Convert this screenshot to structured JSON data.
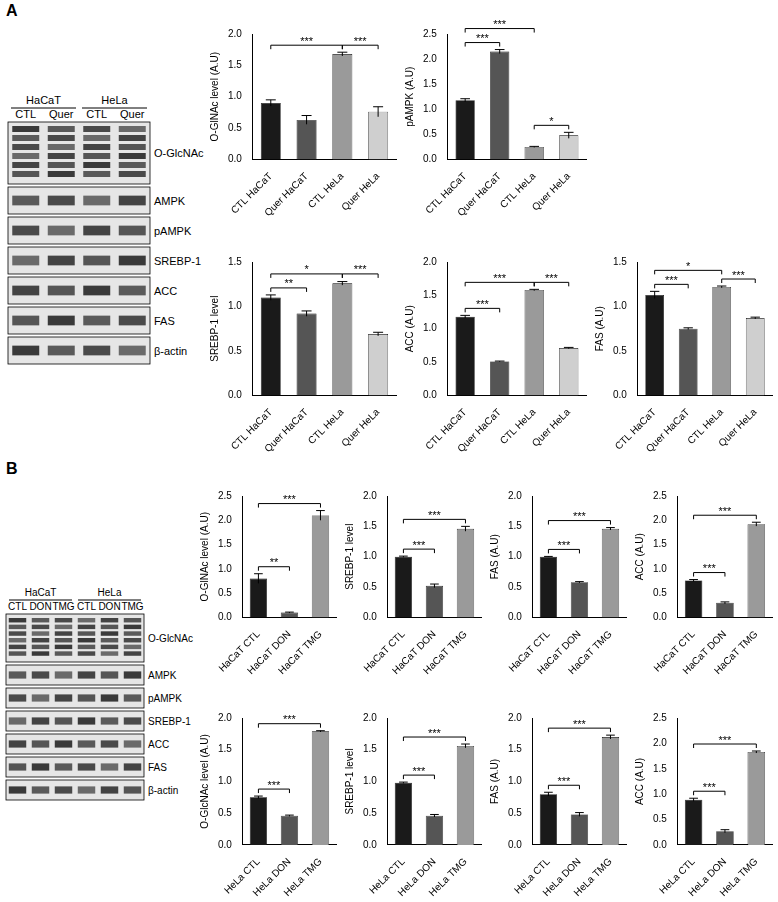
{
  "panels": [
    {
      "label": "A",
      "blot": {
        "groups": [
          "HaCaT",
          "HeLa"
        ],
        "lanes": [
          "CTL",
          "Quer",
          "CTL",
          "Quer"
        ],
        "rows": [
          "O-GlcNAc",
          "AMPK",
          "pAMPK",
          "SREBP-1",
          "ACC",
          "FAS",
          "β-actin"
        ]
      }
    },
    {
      "label": "B",
      "blot": {
        "groups": [
          "HaCaT",
          "HeLa"
        ],
        "lanes": [
          "CTL",
          "DON",
          "TMG",
          "CTL",
          "DON",
          "TMG"
        ],
        "rows": [
          "O-GlcNAc",
          "AMPK",
          "pAMPK",
          "SREBP-1",
          "ACC",
          "FAS",
          "β-actin"
        ]
      }
    }
  ],
  "chart_data": [
    {
      "type": "bar",
      "y_label": "O-GlNAc level (A.U)",
      "categories": [
        "CTL HaCaT",
        "Quer HaCaT",
        "CTL HeLa",
        "Quer HeLa"
      ],
      "values": [
        0.9,
        0.63,
        1.68,
        0.76
      ],
      "errors": [
        0.05,
        0.07,
        0.03,
        0.08
      ],
      "colors": [
        "#1a1a1a",
        "#555555",
        "#9a9a9a",
        "#cfcfcf"
      ],
      "ylim": [
        0,
        2.0
      ],
      "yticks": [
        {
          "value": 0,
          "label": "0.0"
        },
        0.5,
        {
          "value": 1,
          "label": "1.0"
        },
        1.5,
        {
          "value": 2,
          "label": "2.0"
        }
      ],
      "annotations": [
        {
          "from": "CTL HaCaT",
          "to": "CTL HeLa",
          "text": "***"
        },
        {
          "from": "CTL HeLa",
          "to": "Quer HeLa",
          "text": "***"
        }
      ]
    },
    {
      "type": "bar",
      "y_label": "pAMPK (A.U)",
      "categories": [
        "CTL HaCaT",
        "Quer HaCaT",
        "CTL HeLa",
        "Quer HeLa"
      ],
      "values": [
        1.18,
        2.15,
        0.25,
        0.48
      ],
      "errors": [
        0.03,
        0.04,
        0.01,
        0.06
      ],
      "colors": [
        "#1a1a1a",
        "#555555",
        "#9a9a9a",
        "#cfcfcf"
      ],
      "ylim": [
        0,
        2.5
      ],
      "yticks": [
        {
          "value": 0,
          "label": "0.0"
        },
        0.5,
        {
          "value": 1,
          "label": "1.0"
        },
        1.5,
        {
          "value": 2,
          "label": "2.0"
        },
        2.5
      ],
      "annotations": [
        {
          "from": "CTL HaCaT",
          "to": "Quer HaCaT",
          "text": "***"
        },
        {
          "from": "CTL HaCaT",
          "to": "CTL HeLa",
          "text": "***"
        },
        {
          "from": "CTL HeLa",
          "to": "Quer HeLa",
          "text": "*"
        }
      ]
    },
    {
      "type": "bar",
      "y_label": "SREBP-1 level",
      "categories": [
        "CTL HaCaT",
        "Quer HaCaT",
        "CTL HeLa",
        "Quer HeLa"
      ],
      "values": [
        1.1,
        0.92,
        1.26,
        0.69
      ],
      "errors": [
        0.03,
        0.03,
        0.02,
        0.02
      ],
      "colors": [
        "#1a1a1a",
        "#555555",
        "#9a9a9a",
        "#cfcfcf"
      ],
      "ylim": [
        0,
        1.5
      ],
      "yticks": [
        {
          "value": 0,
          "label": "0.0"
        },
        0.5,
        {
          "value": 1,
          "label": "1.0"
        },
        1.5
      ],
      "annotations": [
        {
          "from": "CTL HaCaT",
          "to": "Quer HaCaT",
          "text": "**"
        },
        {
          "from": "CTL HaCaT",
          "to": "CTL HeLa",
          "text": "*"
        },
        {
          "from": "CTL HeLa",
          "to": "Quer HeLa",
          "text": "***"
        }
      ]
    },
    {
      "type": "bar",
      "y_label": "ACC (A.U)",
      "categories": [
        "CTL HaCaT",
        "Quer HaCaT",
        "CTL HeLa",
        "Quer HeLa"
      ],
      "values": [
        1.18,
        0.51,
        1.58,
        0.71
      ],
      "errors": [
        0.02,
        0.005,
        0.01,
        0.01
      ],
      "colors": [
        "#1a1a1a",
        "#555555",
        "#9a9a9a",
        "#cfcfcf"
      ],
      "ylim": [
        0,
        2.0
      ],
      "yticks": [
        {
          "value": 0,
          "label": "0.0"
        },
        0.5,
        {
          "value": 1,
          "label": "1.0"
        },
        1.5,
        {
          "value": 2,
          "label": "2.0"
        }
      ],
      "annotations": [
        {
          "from": "CTL HaCaT",
          "to": "Quer HaCaT",
          "text": "***"
        },
        {
          "from": "CTL HaCaT",
          "to": "CTL HeLa",
          "text": "***"
        },
        {
          "from": "CTL HeLa",
          "to": "Quer HeLa",
          "text": "***"
        }
      ]
    },
    {
      "type": "bar",
      "y_label": "FAS (A.U)",
      "categories": [
        "CTL HaCaT",
        "Quer HaCaT",
        "CTL HeLa",
        "Quer HeLa"
      ],
      "values": [
        1.13,
        0.75,
        1.22,
        0.87
      ],
      "errors": [
        0.04,
        0.01,
        0.01,
        0.01
      ],
      "colors": [
        "#1a1a1a",
        "#555555",
        "#9a9a9a",
        "#cfcfcf"
      ],
      "ylim": [
        0,
        1.5
      ],
      "yticks": [
        {
          "value": 0,
          "label": "0.0"
        },
        0.5,
        {
          "value": 1,
          "label": "1.0"
        },
        1.5
      ],
      "annotations": [
        {
          "from": "CTL HaCaT",
          "to": "Quer HaCaT",
          "text": "***"
        },
        {
          "from": "CTL HaCaT",
          "to": "CTL HeLa",
          "text": "*"
        },
        {
          "from": "CTL HeLa",
          "to": "Quer HeLa",
          "text": "***"
        }
      ]
    },
    {
      "type": "bar",
      "y_label": "O-GlNAc level (A.U)",
      "categories": [
        "HaCaT CTL",
        "HaCaT DON",
        "HaCaT TMG"
      ],
      "values": [
        0.8,
        0.1,
        2.1
      ],
      "errors": [
        0.1,
        0.01,
        0.1
      ],
      "colors": [
        "#1a1a1a",
        "#555555",
        "#9a9a9a"
      ],
      "ylim": [
        0,
        2.5
      ],
      "yticks": [
        {
          "value": 0,
          "label": "0.0"
        },
        0.5,
        {
          "value": 1,
          "label": "1.0"
        },
        1.5,
        {
          "value": 2,
          "label": "2.0"
        },
        2.5
      ],
      "annotations": [
        {
          "from": "HaCaT CTL",
          "to": "HaCaT DON",
          "text": "**"
        },
        {
          "from": "HaCaT CTL",
          "to": "HaCaT TMG",
          "text": "***"
        }
      ]
    },
    {
      "type": "bar",
      "y_label": "SREBP-1 level",
      "categories": [
        "HaCaT CTL",
        "HaCaT DON",
        "HaCaT TMG"
      ],
      "values": [
        1.0,
        0.52,
        1.46
      ],
      "errors": [
        0.01,
        0.03,
        0.04
      ],
      "colors": [
        "#1a1a1a",
        "#555555",
        "#9a9a9a"
      ],
      "ylim": [
        0,
        2.0
      ],
      "yticks": [
        {
          "value": 0,
          "label": "0.0"
        },
        0.5,
        {
          "value": 1,
          "label": "1.0"
        },
        1.5,
        {
          "value": 2,
          "label": "2.0"
        }
      ],
      "annotations": [
        {
          "from": "HaCaT CTL",
          "to": "HaCaT DON",
          "text": "***"
        },
        {
          "from": "HaCaT CTL",
          "to": "HaCaT TMG",
          "text": "***"
        }
      ]
    },
    {
      "type": "bar",
      "y_label": "FAS (A.U)",
      "categories": [
        "HaCaT CTL",
        "HaCaT DON",
        "HaCaT TMG"
      ],
      "values": [
        1.0,
        0.58,
        1.46
      ],
      "errors": [
        0.005,
        0.01,
        0.02
      ],
      "colors": [
        "#1a1a1a",
        "#555555",
        "#9a9a9a"
      ],
      "ylim": [
        0,
        2.0
      ],
      "yticks": [
        {
          "value": 0,
          "label": "0.0"
        },
        0.5,
        {
          "value": 1,
          "label": "1.0"
        },
        1.5,
        {
          "value": 2,
          "label": "2.0"
        }
      ],
      "annotations": [
        {
          "from": "HaCaT CTL",
          "to": "HaCaT DON",
          "text": "***"
        },
        {
          "from": "HaCaT CTL",
          "to": "HaCaT TMG",
          "text": "***"
        }
      ]
    },
    {
      "type": "bar",
      "y_label": "ACC (A.U)",
      "categories": [
        "HaCaT CTL",
        "HaCaT DON",
        "HaCaT TMG"
      ],
      "values": [
        0.76,
        0.3,
        1.92
      ],
      "errors": [
        0.02,
        0.02,
        0.04
      ],
      "colors": [
        "#1a1a1a",
        "#555555",
        "#9a9a9a"
      ],
      "ylim": [
        0,
        2.5
      ],
      "yticks": [
        {
          "value": 0,
          "label": "0.0"
        },
        0.5,
        {
          "value": 1,
          "label": "1.0"
        },
        1.5,
        {
          "value": 2,
          "label": "2.0"
        },
        2.5
      ],
      "annotations": [
        {
          "from": "HaCaT CTL",
          "to": "HaCaT DON",
          "text": "***"
        },
        {
          "from": "HaCaT CTL",
          "to": "HaCaT TMG",
          "text": "***"
        }
      ]
    },
    {
      "type": "bar",
      "y_label": "O-GlcNAc level (A.U)",
      "categories": [
        "HeLa CTL",
        "HeLa DON",
        "HeLa TMG"
      ],
      "values": [
        0.75,
        0.46,
        1.79
      ],
      "errors": [
        0.02,
        0.01,
        0.01
      ],
      "colors": [
        "#1a1a1a",
        "#555555",
        "#9a9a9a"
      ],
      "ylim": [
        0,
        2.0
      ],
      "yticks": [
        {
          "value": 0,
          "label": "0.0"
        },
        0.5,
        {
          "value": 1,
          "label": "1.0"
        },
        1.5,
        {
          "value": 2,
          "label": "2.0"
        }
      ],
      "annotations": [
        {
          "from": "HeLa CTL",
          "to": "HeLa DON",
          "text": "***"
        },
        {
          "from": "HeLa CTL",
          "to": "HeLa TMG",
          "text": "***"
        }
      ]
    },
    {
      "type": "bar",
      "y_label": "SREBP-1 level",
      "categories": [
        "HeLa CTL",
        "HeLa DON",
        "HeLa TMG"
      ],
      "values": [
        0.98,
        0.46,
        1.56
      ],
      "errors": [
        0.01,
        0.02,
        0.03
      ],
      "colors": [
        "#1a1a1a",
        "#555555",
        "#9a9a9a"
      ],
      "ylim": [
        0,
        2.0
      ],
      "yticks": [
        {
          "value": 0,
          "label": "0.0"
        },
        0.5,
        {
          "value": 1,
          "label": "1.0"
        },
        1.5,
        {
          "value": 2,
          "label": "2.0"
        }
      ],
      "annotations": [
        {
          "from": "HeLa CTL",
          "to": "HeLa DON",
          "text": "***"
        },
        {
          "from": "HeLa CTL",
          "to": "HeLa TMG",
          "text": "***"
        }
      ]
    },
    {
      "type": "bar",
      "y_label": "FAS (A.U)",
      "categories": [
        "HeLa CTL",
        "HeLa DON",
        "HeLa TMG"
      ],
      "values": [
        0.8,
        0.48,
        1.7
      ],
      "errors": [
        0.03,
        0.03,
        0.03
      ],
      "colors": [
        "#1a1a1a",
        "#555555",
        "#9a9a9a"
      ],
      "ylim": [
        0,
        2.0
      ],
      "yticks": [
        {
          "value": 0,
          "label": "0.0"
        },
        0.5,
        {
          "value": 1,
          "label": "1.0"
        },
        1.5,
        {
          "value": 2,
          "label": "2.0"
        }
      ],
      "annotations": [
        {
          "from": "HeLa CTL",
          "to": "HeLa DON",
          "text": "***"
        },
        {
          "from": "HeLa CTL",
          "to": "HeLa TMG",
          "text": "***"
        }
      ]
    },
    {
      "type": "bar",
      "y_label": "ACC (A.U)",
      "categories": [
        "HeLa CTL",
        "HeLa DON",
        "HeLa TMG"
      ],
      "values": [
        0.89,
        0.27,
        1.83
      ],
      "errors": [
        0.03,
        0.03,
        0.02
      ],
      "colors": [
        "#1a1a1a",
        "#555555",
        "#9a9a9a"
      ],
      "ylim": [
        0,
        2.5
      ],
      "yticks": [
        {
          "value": 0,
          "label": "0.0"
        },
        0.5,
        {
          "value": 1,
          "label": "1.0"
        },
        1.5,
        {
          "value": 2,
          "label": "2.0"
        },
        2.5
      ],
      "annotations": [
        {
          "from": "HeLa CTL",
          "to": "HeLa DON",
          "text": "***"
        },
        {
          "from": "HeLa CTL",
          "to": "HeLa TMG",
          "text": "***"
        }
      ]
    }
  ]
}
